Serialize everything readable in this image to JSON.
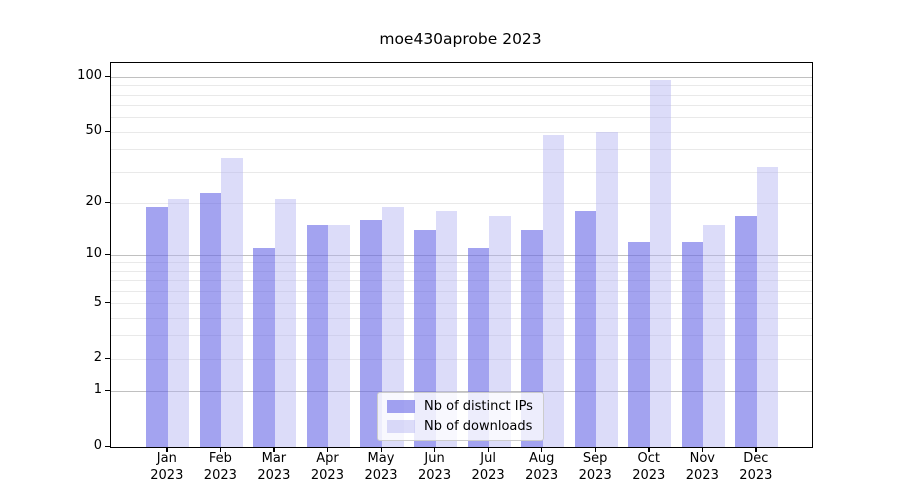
{
  "title": "moe430aprobe 2023",
  "chart_data": {
    "type": "bar",
    "title": "moe430aprobe 2023",
    "categories": [
      "Jan",
      "Feb",
      "Mar",
      "Apr",
      "May",
      "Jun",
      "Jul",
      "Aug",
      "Sep",
      "Oct",
      "Nov",
      "Dec"
    ],
    "x_tick_year": "2023",
    "series": [
      {
        "name": "Nb of distinct IPs",
        "key": "distinct-ips",
        "color": "#6666e6",
        "opacity": 0.6,
        "values": [
          19,
          23,
          11,
          15,
          16,
          14,
          11,
          14,
          18,
          12,
          12,
          17
        ]
      },
      {
        "name": "Nb of downloads",
        "key": "downloads",
        "color": "#b1b1f2",
        "opacity": 0.45,
        "values": [
          21,
          36,
          21,
          15,
          19,
          18,
          17,
          48,
          50,
          97,
          15,
          32
        ]
      }
    ],
    "xlabel": "",
    "ylabel": "",
    "yscale": "log(value+1)",
    "ylim": [
      0,
      120
    ],
    "yticks": [
      0,
      1,
      2,
      5,
      10,
      20,
      50,
      100
    ],
    "major_gridlines": [
      1,
      10,
      100
    ],
    "minor_gridlines": [
      2,
      3,
      4,
      5,
      6,
      7,
      8,
      9,
      20,
      30,
      40,
      50,
      60,
      70,
      80,
      90
    ],
    "grid": true,
    "legend_position": "lower center",
    "colors": {
      "background": "#ffffff",
      "axis": "#000000",
      "major_grid": "#c0c0c0",
      "minor_grid": "#e9e9e9",
      "bar_distinct_ips_rendered": "#a3a3ef",
      "bar_downloads_rendered": "#dcdcf9"
    }
  }
}
